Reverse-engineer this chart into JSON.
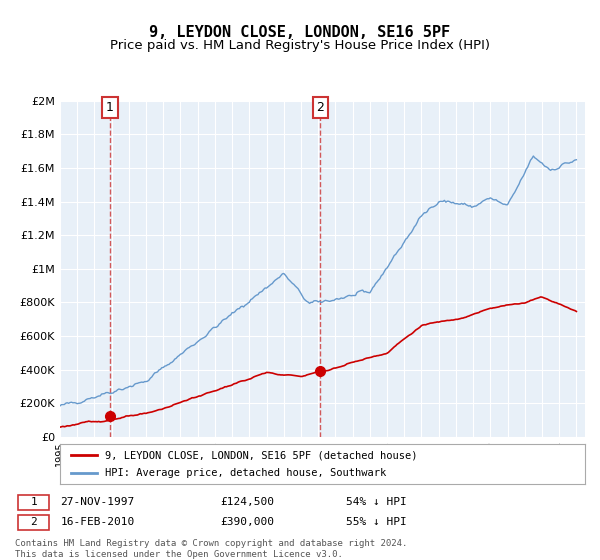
{
  "title": "9, LEYDON CLOSE, LONDON, SE16 5PF",
  "subtitle": "Price paid vs. HM Land Registry's House Price Index (HPI)",
  "title_fontsize": 11,
  "subtitle_fontsize": 9.5,
  "background_color": "#ffffff",
  "plot_bg_color": "#e8f0f8",
  "grid_color": "#ffffff",
  "hpi_color": "#6699cc",
  "price_color": "#cc0000",
  "annotation_box_color": "#cc3333",
  "ylim": [
    0,
    2000000
  ],
  "yticks": [
    0,
    200000,
    400000,
    600000,
    800000,
    1000000,
    1200000,
    1400000,
    1600000,
    1800000,
    2000000
  ],
  "ytick_labels": [
    "£0",
    "£200K",
    "£400K",
    "£600K",
    "£800K",
    "£1M",
    "£1.2M",
    "£1.4M",
    "£1.6M",
    "£1.8M",
    "£2M"
  ],
  "xlim_start": 1995.0,
  "xlim_end": 2025.5,
  "purchase1_x": 1997.91,
  "purchase1_y": 124500,
  "purchase1_label": "1",
  "purchase1_date": "27-NOV-1997",
  "purchase1_price": "£124,500",
  "purchase1_hpi": "54% ↓ HPI",
  "purchase2_x": 2010.12,
  "purchase2_y": 390000,
  "purchase2_label": "2",
  "purchase2_date": "16-FEB-2010",
  "purchase2_price": "£390,000",
  "purchase2_hpi": "55% ↓ HPI",
  "legend_line1": "9, LEYDON CLOSE, LONDON, SE16 5PF (detached house)",
  "legend_line2": "HPI: Average price, detached house, Southwark",
  "footer": "Contains HM Land Registry data © Crown copyright and database right 2024.\nThis data is licensed under the Open Government Licence v3.0."
}
